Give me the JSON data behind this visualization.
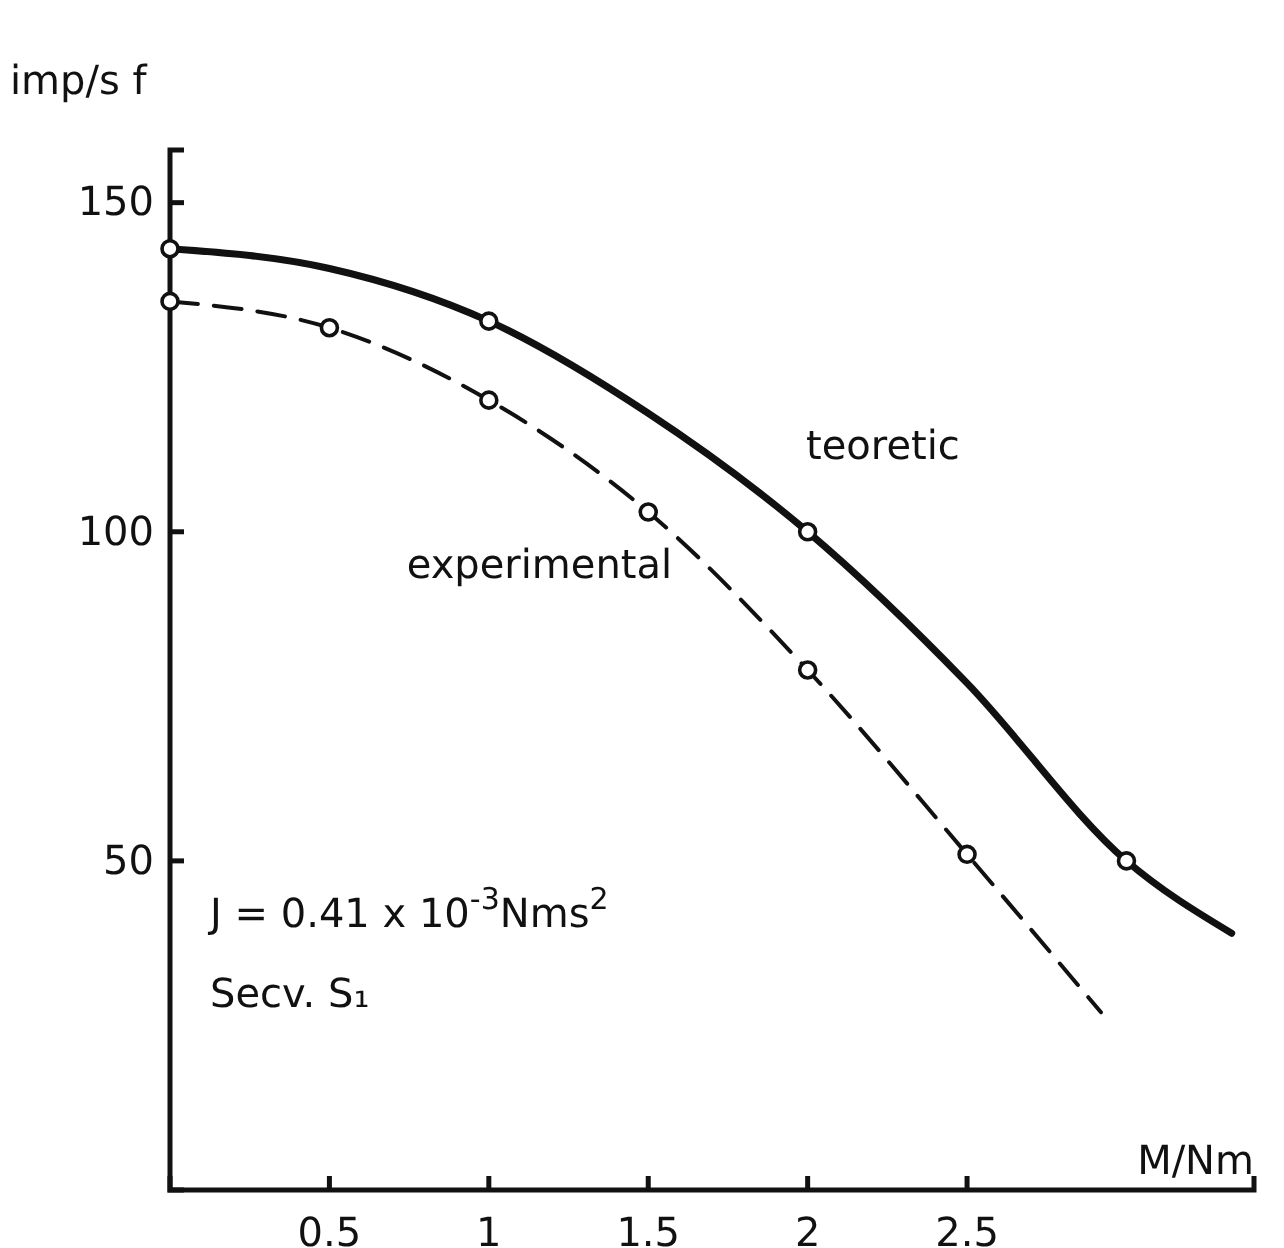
{
  "chart_data": {
    "type": "line",
    "ylabel": "imp/s f",
    "xlabel": "M/Nm",
    "x": [
      0,
      0.5,
      1,
      1.5,
      2,
      2.5,
      3,
      3.33
    ],
    "series": [
      {
        "name": "teoretic",
        "color": "#111111",
        "line_style": "solid",
        "values": [
          143,
          140,
          132,
          118,
          100,
          77,
          50,
          39
        ]
      },
      {
        "name": "experimental",
        "color": "#111111",
        "line_style": "dashed",
        "x": [
          0,
          0.5,
          1,
          1.5,
          2,
          2.5,
          2.92
        ],
        "values": [
          135,
          131,
          120,
          103,
          79,
          51,
          27
        ]
      },
      {
        "type": "scatter",
        "color": "#111111",
        "marker": "circle",
        "x": [
          0,
          1,
          2,
          3
        ],
        "values": [
          143,
          132,
          100,
          50
        ]
      },
      {
        "type": "scatter",
        "color": "#111111",
        "marker": "circle",
        "x": [
          0,
          0.5,
          1,
          1.5,
          2,
          2.5
        ],
        "values": [
          135,
          131,
          120,
          103,
          79,
          51
        ]
      }
    ],
    "xlim": [
      0,
      3.4
    ],
    "ylim": [
      0,
      158
    ],
    "xticks": [
      {
        "value": 0.5,
        "label": "0.5"
      },
      1,
      1.5,
      2,
      2.5
    ],
    "yticks": [
      50,
      100,
      150
    ],
    "grid": false,
    "annotations": [
      "J = 0.41 x 10$^{-3}$Nms$^{2}$",
      "Secv. S₁"
    ]
  }
}
